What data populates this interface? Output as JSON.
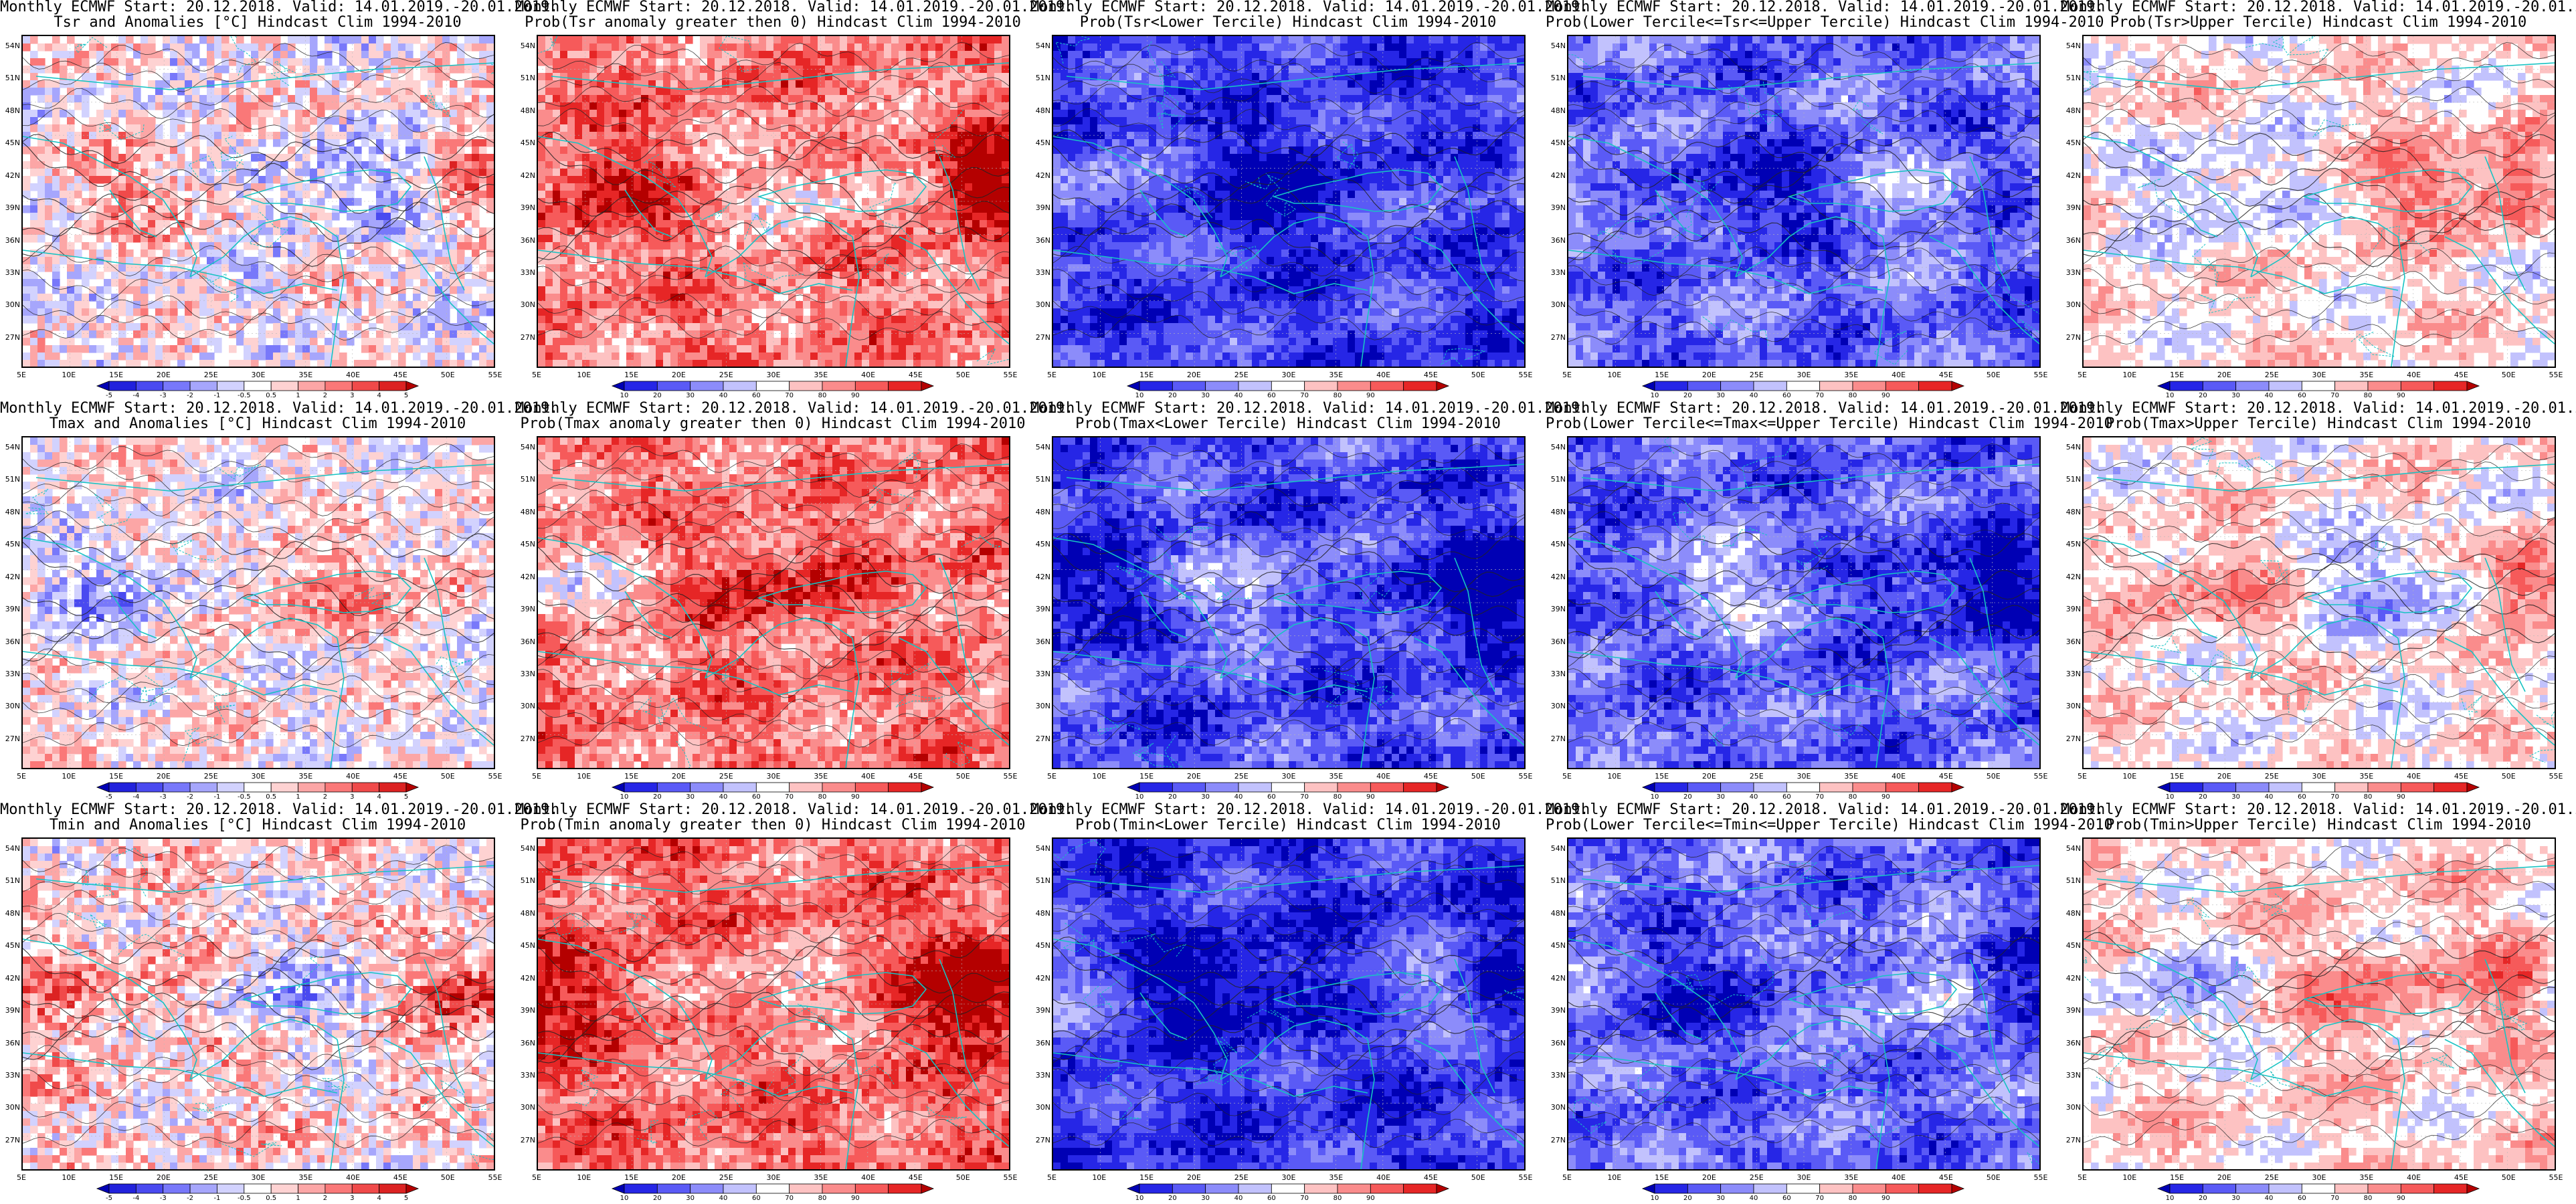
{
  "common_title": "Monthly ECMWF Start: 20.12.2018. Valid: 14.01.2019.-20.01.2019.",
  "lat_labels": [
    "54N",
    "51N",
    "48N",
    "45N",
    "42N",
    "39N",
    "36N",
    "33N",
    "30N",
    "27N"
  ],
  "lon_labels": [
    "5E",
    "10E",
    "15E",
    "20E",
    "25E",
    "30E",
    "35E",
    "40E",
    "45E",
    "50E",
    "55E"
  ],
  "anomaly_scale": {
    "labels": [
      "-5",
      "-4",
      "-3",
      "-2",
      "-1",
      "-0.5",
      "0.5",
      "1",
      "2",
      "3",
      "4",
      "5"
    ],
    "colors": [
      "#0000b4",
      "#2222dc",
      "#4a4af0",
      "#7878fa",
      "#a6a6fc",
      "#d2d2fe",
      "#ffffff",
      "#fed2d2",
      "#fca6a6",
      "#fa7878",
      "#f04a4a",
      "#dc2222",
      "#b40000"
    ]
  },
  "probability_scale": {
    "labels": [
      "10",
      "20",
      "30",
      "40",
      "60",
      "70",
      "80",
      "90"
    ],
    "colors": [
      "#0000b4",
      "#2626e6",
      "#5a5af6",
      "#8c8cfa",
      "#c2c2fd",
      "#ffffff",
      "#fdc2c2",
      "#fa8c8c",
      "#f65a5a",
      "#e62626",
      "#b40000"
    ]
  },
  "panels": [
    {
      "row": 0,
      "col": 0,
      "subtitle": "Tsr and Anomalies [°C] Hindcast Clim 1994-2010",
      "scale": "anomaly",
      "mean": 6.2,
      "spread": 4.5
    },
    {
      "row": 0,
      "col": 1,
      "subtitle": "Prob(Tsr anomaly greater then 0) Hindcast Clim 1994-2010",
      "scale": "probability",
      "mean": 7.3,
      "spread": 3.0
    },
    {
      "row": 0,
      "col": 2,
      "subtitle": "Prob(Tsr<Lower Tercile) Hindcast Clim 1994-2010",
      "scale": "probability",
      "mean": 1.5,
      "spread": 2.0
    },
    {
      "row": 0,
      "col": 3,
      "subtitle": "Prob(Lower Tercile<=Tsr<=Upper Tercile) Hindcast Clim 1994-2010",
      "scale": "probability",
      "mean": 2.3,
      "spread": 2.4
    },
    {
      "row": 0,
      "col": 4,
      "subtitle": "Prob(Tsr>Upper Tercile) Hindcast Clim 1994-2010",
      "scale": "probability",
      "mean": 5.4,
      "spread": 2.0
    },
    {
      "row": 1,
      "col": 0,
      "subtitle": "Tmax and Anomalies [°C] Hindcast Clim 1994-2010",
      "scale": "anomaly",
      "mean": 6.3,
      "spread": 4.0
    },
    {
      "row": 1,
      "col": 1,
      "subtitle": "Prob(Tmax anomaly greater then 0) Hindcast Clim 1994-2010",
      "scale": "probability",
      "mean": 7.3,
      "spread": 2.8
    },
    {
      "row": 1,
      "col": 2,
      "subtitle": "Prob(Tmax<Lower Tercile) Hindcast Clim 1994-2010",
      "scale": "probability",
      "mean": 1.7,
      "spread": 2.2
    },
    {
      "row": 1,
      "col": 3,
      "subtitle": "Prob(Lower Tercile<=Tmax<=Upper Tercile) Hindcast Clim 1994-2010",
      "scale": "probability",
      "mean": 2.2,
      "spread": 2.4
    },
    {
      "row": 1,
      "col": 4,
      "subtitle": "Prob(Tmax>Upper Tercile) Hindcast Clim 1994-2010",
      "scale": "probability",
      "mean": 5.3,
      "spread": 2.0
    },
    {
      "row": 2,
      "col": 0,
      "subtitle": "Tmin and Anomalies [°C] Hindcast Clim 1994-2010",
      "scale": "anomaly",
      "mean": 6.7,
      "spread": 4.5
    },
    {
      "row": 2,
      "col": 1,
      "subtitle": "Prob(Tmin anomaly greater then 0) Hindcast Clim 1994-2010",
      "scale": "probability",
      "mean": 7.6,
      "spread": 2.8
    },
    {
      "row": 2,
      "col": 2,
      "subtitle": "Prob(Tmin<Lower Tercile) Hindcast Clim 1994-2010",
      "scale": "probability",
      "mean": 1.3,
      "spread": 1.8
    },
    {
      "row": 2,
      "col": 3,
      "subtitle": "Prob(Lower Tercile<=Tmin<=Upper Tercile) Hindcast Clim 1994-2010",
      "scale": "probability",
      "mean": 2.3,
      "spread": 2.4
    },
    {
      "row": 2,
      "col": 4,
      "subtitle": "Prob(Tmin>Upper Tercile) Hindcast Clim 1994-2010",
      "scale": "probability",
      "mean": 5.6,
      "spread": 1.9
    }
  ]
}
